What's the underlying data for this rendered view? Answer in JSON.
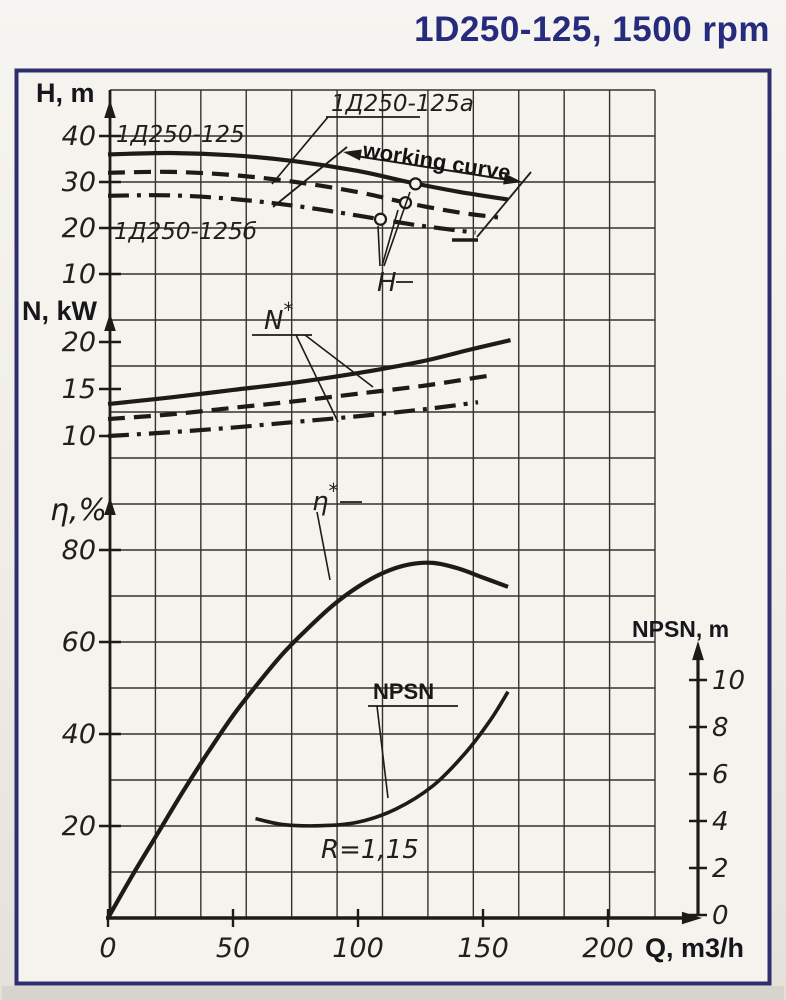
{
  "title": "1D250-125, 1500 rpm",
  "colors": {
    "title": "#262b7d",
    "frame": "#2e2e6e",
    "paper": "#f5f3ed",
    "ink": "#1d1b18",
    "grid": "#35322c"
  },
  "chart_data": {
    "type": "line",
    "title": "1D250-125, 1500 rpm",
    "xlabel": "Q, m3/h",
    "x_ticks": [
      0,
      50,
      100,
      150,
      200
    ],
    "x_range": [
      0,
      218
    ],
    "grid": true,
    "panels": [
      {
        "id": "head",
        "ylabel": "H, m",
        "y_ticks": [
          40,
          30,
          20,
          10
        ],
        "series": [
          {
            "name": "1Д250-125",
            "style": "solid",
            "points": [
              [
                0,
                36
              ],
              [
                25,
                36.3
              ],
              [
                50,
                35.8
              ],
              [
                75,
                34.5
              ],
              [
                100,
                32.4
              ],
              [
                120,
                30.0
              ],
              [
                140,
                27.9
              ],
              [
                160,
                26.2
              ]
            ],
            "working_point": [
              123,
              29.6
            ]
          },
          {
            "name": "1Д250-125a",
            "style": "dashed",
            "points": [
              [
                0,
                32
              ],
              [
                25,
                32.2
              ],
              [
                50,
                31.5
              ],
              [
                75,
                30.0
              ],
              [
                100,
                27.8
              ],
              [
                120,
                25.4
              ],
              [
                140,
                23.4
              ],
              [
                156,
                22.3
              ]
            ],
            "working_point": [
              119,
              25.5
            ]
          },
          {
            "name": "1Д250-125б",
            "style": "dashdot",
            "points": [
              [
                0,
                27
              ],
              [
                25,
                27.1
              ],
              [
                50,
                26.3
              ],
              [
                75,
                24.8
              ],
              [
                100,
                22.7
              ],
              [
                120,
                20.9
              ],
              [
                135,
                19.8
              ],
              [
                147,
                19.0
              ]
            ],
            "working_point": [
              109,
              21.9
            ]
          }
        ]
      },
      {
        "id": "power",
        "ylabel": "N, kW",
        "y_ticks": [
          20,
          15,
          10
        ],
        "series": [
          {
            "name": "N 1Д250-125",
            "style": "solid",
            "points": [
              [
                0,
                13.4
              ],
              [
                25,
                14.1
              ],
              [
                50,
                14.9
              ],
              [
                75,
                15.7
              ],
              [
                100,
                16.7
              ],
              [
                125,
                17.9
              ],
              [
                145,
                19.2
              ],
              [
                161,
                20.2
              ]
            ]
          },
          {
            "name": "N 1Д250-125a",
            "style": "dashed",
            "points": [
              [
                0,
                11.8
              ],
              [
                25,
                12.3
              ],
              [
                50,
                13.0
              ],
              [
                75,
                13.7
              ],
              [
                100,
                14.5
              ],
              [
                125,
                15.3
              ],
              [
                140,
                15.9
              ],
              [
                152,
                16.4
              ]
            ]
          },
          {
            "name": "N 1Д250-125б",
            "style": "dashdot",
            "points": [
              [
                0,
                10.0
              ],
              [
                25,
                10.4
              ],
              [
                50,
                10.9
              ],
              [
                75,
                11.5
              ],
              [
                100,
                12.1
              ],
              [
                125,
                12.8
              ],
              [
                140,
                13.3
              ],
              [
                148,
                13.6
              ]
            ]
          }
        ]
      },
      {
        "id": "efficiency",
        "ylabel": "η,%",
        "y_ticks": [
          80,
          60,
          40,
          20
        ],
        "series": [
          {
            "name": "η*",
            "style": "solid",
            "points": [
              [
                0,
                0
              ],
              [
                10,
                9.5
              ],
              [
                20,
                18.5
              ],
              [
                30,
                27.5
              ],
              [
                40,
                36
              ],
              [
                50,
                44
              ],
              [
                60,
                51
              ],
              [
                70,
                57.5
              ],
              [
                80,
                63
              ],
              [
                90,
                68
              ],
              [
                100,
                72
              ],
              [
                110,
                75
              ],
              [
                120,
                76.8
              ],
              [
                130,
                77.2
              ],
              [
                140,
                76
              ],
              [
                150,
                74
              ],
              [
                160,
                72
              ]
            ]
          }
        ]
      },
      {
        "id": "npsh",
        "ylabel": "NPSN, m",
        "y_ticks": [
          10,
          8,
          6,
          4,
          2,
          0
        ],
        "series": [
          {
            "name": "NPSN",
            "style": "solid",
            "points": [
              [
                59,
                4.1
              ],
              [
                70,
                3.85
              ],
              [
                85,
                3.8
              ],
              [
                100,
                3.95
              ],
              [
                115,
                4.5
              ],
              [
                130,
                5.5
              ],
              [
                143,
                6.9
              ],
              [
                153,
                8.3
              ],
              [
                160,
                9.5
              ]
            ]
          }
        ]
      }
    ],
    "annotations": {
      "curve_label_main": "1Д250-125",
      "curve_label_a": "1Д250-125a",
      "curve_label_b": "1Д250-125б",
      "working_curve": "working curve",
      "h_callout": "H",
      "n_star": "N*",
      "eta_star": "η*",
      "npsn_callout": "NPSN",
      "r_value": "R=1,15"
    }
  }
}
